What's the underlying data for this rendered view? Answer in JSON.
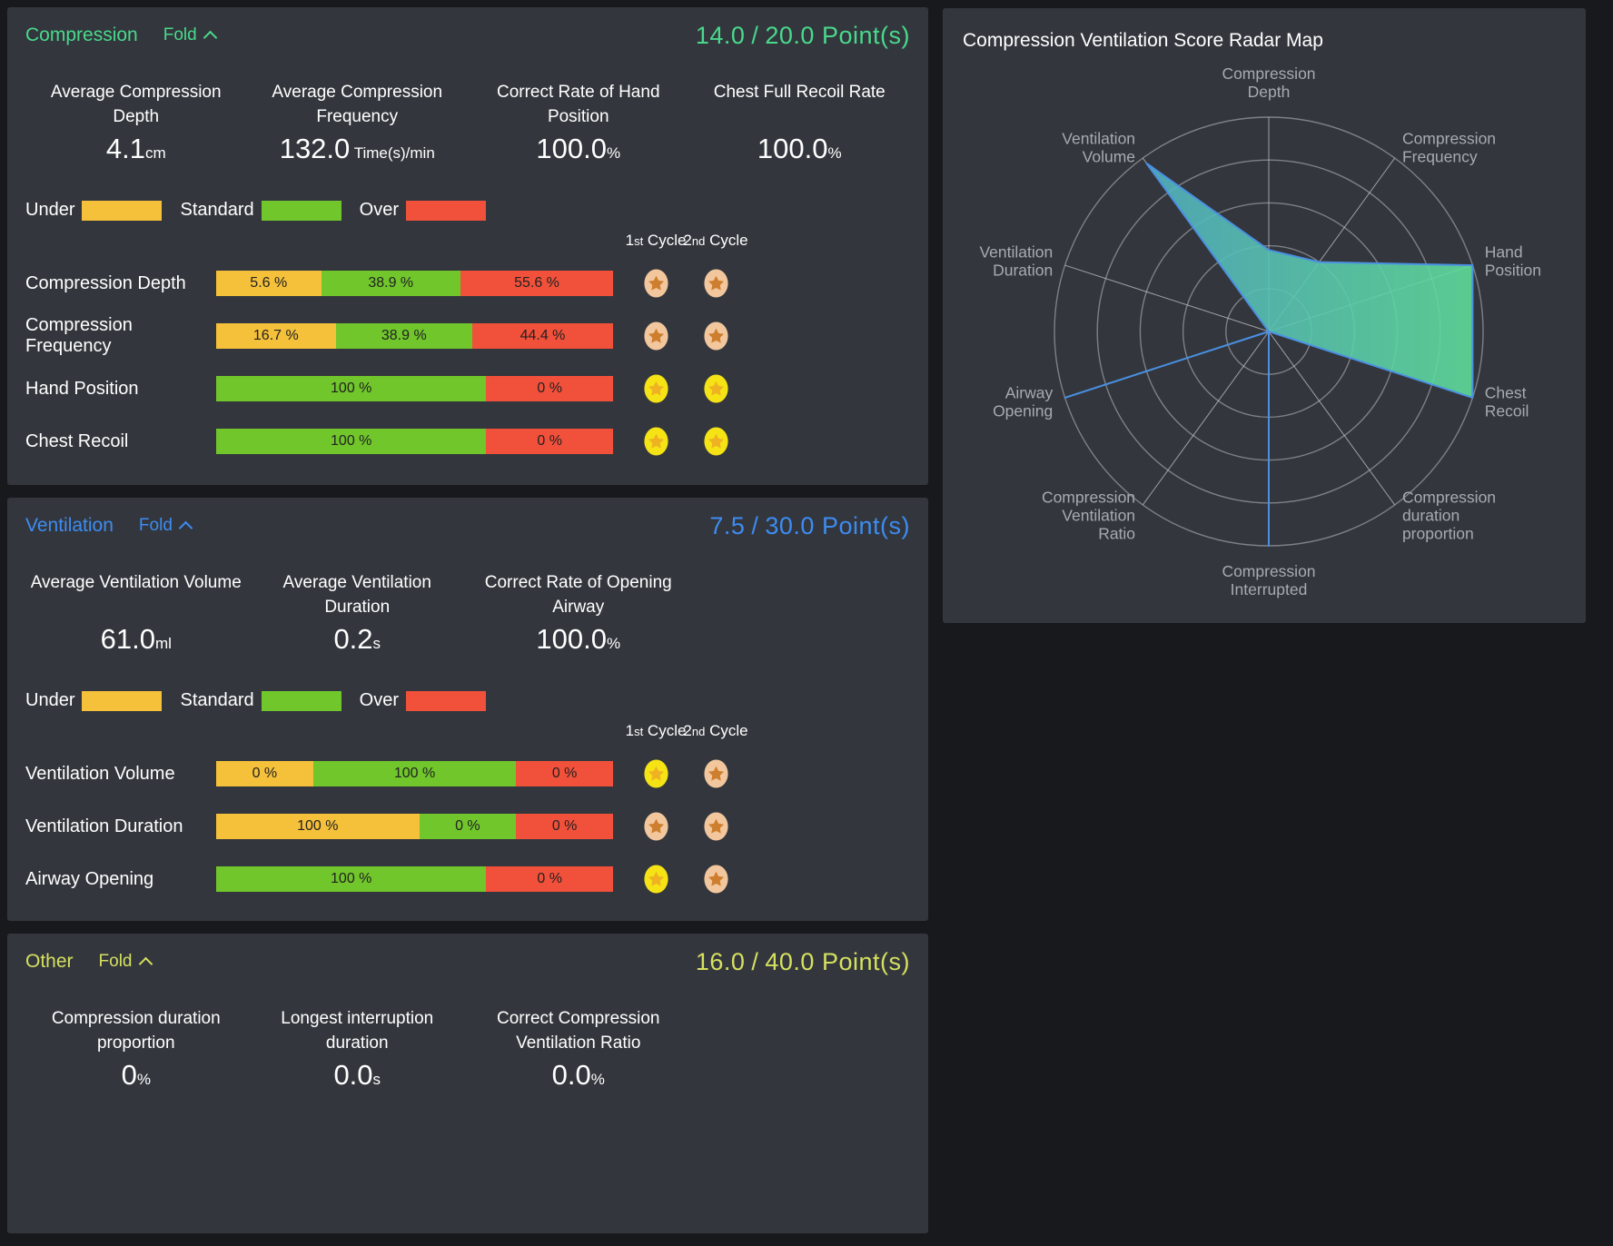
{
  "page": {
    "background": "#17191d",
    "panel_background": "#33373d"
  },
  "cycle_headers": [
    {
      "num": "1",
      "suffix": "st",
      "word": "Cycle"
    },
    {
      "num": "2",
      "suffix": "nd",
      "word": "Cycle"
    }
  ],
  "legend": {
    "items": [
      {
        "label": "Under",
        "kind": "under"
      },
      {
        "label": "Standard",
        "kind": "standard"
      },
      {
        "label": "Over",
        "kind": "over"
      }
    ]
  },
  "bar_colors": {
    "under": "#f5c13a",
    "standard": "#70c62b",
    "over": "#f1503a"
  },
  "medal_colors": {
    "gold": {
      "circle": "#f6e315",
      "star": "#eeb222"
    },
    "bronze": {
      "circle": "#f3c79d",
      "star": "#cd7e2e"
    }
  },
  "panels": [
    {
      "id": "compression",
      "title": "Compression",
      "fold_label": "Fold",
      "score": "14.0",
      "sep": "/",
      "max": "20.0",
      "points_label": "Point(s)",
      "accent": "#49d98c",
      "show_legend": true,
      "show_cycles": true,
      "metrics": [
        {
          "lines": [
            "Average Compression",
            "Depth"
          ],
          "value": "4.1",
          "unit": "cm"
        },
        {
          "lines": [
            "Average Compression",
            "Frequency"
          ],
          "value": "132.0",
          "unit": " Time(s)/min"
        },
        {
          "lines": [
            "Correct Rate of Hand",
            "Position"
          ],
          "value": "100.0",
          "unit": "%"
        },
        {
          "lines": [
            "Chest Full Recoil Rate"
          ],
          "value": "100.0",
          "unit": "%"
        }
      ],
      "rows": [
        {
          "label": "Compression Depth",
          "segments": [
            {
              "kind": "under",
              "pct": 5.6,
              "text": "5.6 %"
            },
            {
              "kind": "standard",
              "pct": 38.9,
              "text": "38.9 %"
            },
            {
              "kind": "over",
              "pct": 55.6,
              "text": "55.6 %"
            }
          ],
          "medals": [
            "bronze",
            "bronze"
          ]
        },
        {
          "label": "Compression Frequency",
          "segments": [
            {
              "kind": "under",
              "pct": 16.7,
              "text": "16.7 %"
            },
            {
              "kind": "standard",
              "pct": 38.9,
              "text": "38.9 %"
            },
            {
              "kind": "over",
              "pct": 44.4,
              "text": "44.4 %"
            }
          ],
          "medals": [
            "bronze",
            "bronze"
          ]
        },
        {
          "label": "Hand Position",
          "segments": [
            {
              "kind": "standard",
              "pct": 100,
              "text": "100 %"
            },
            {
              "kind": "over",
              "pct": 0,
              "text": "0 %"
            }
          ],
          "medals": [
            "gold",
            "gold"
          ]
        },
        {
          "label": "Chest Recoil",
          "segments": [
            {
              "kind": "standard",
              "pct": 100,
              "text": "100 %"
            },
            {
              "kind": "over",
              "pct": 0,
              "text": "0 %"
            }
          ],
          "medals": [
            "gold",
            "gold"
          ]
        }
      ]
    },
    {
      "id": "ventilation",
      "title": "Ventilation",
      "fold_label": "Fold",
      "score": "7.5",
      "sep": "/",
      "max": "30.0",
      "points_label": "Point(s)",
      "accent": "#3d8cf2",
      "show_legend": true,
      "show_cycles": true,
      "metrics": [
        {
          "lines": [
            "Average Ventilation Volume"
          ],
          "value": "61.0",
          "unit": "ml"
        },
        {
          "lines": [
            "Average Ventilation",
            "Duration"
          ],
          "value": "0.2",
          "unit": "s"
        },
        {
          "lines": [
            "Correct Rate of Opening",
            "Airway"
          ],
          "value": "100.0",
          "unit": "%"
        }
      ],
      "rows": [
        {
          "label": "Ventilation Volume",
          "segments": [
            {
              "kind": "under",
              "pct": 0,
              "text": "0 %"
            },
            {
              "kind": "standard",
              "pct": 100,
              "text": "100 %"
            },
            {
              "kind": "over",
              "pct": 0,
              "text": "0 %"
            }
          ],
          "medals": [
            "gold",
            "bronze"
          ]
        },
        {
          "label": "Ventilation Duration",
          "segments": [
            {
              "kind": "under",
              "pct": 100,
              "text": "100 %"
            },
            {
              "kind": "standard",
              "pct": 0,
              "text": "0 %"
            },
            {
              "kind": "over",
              "pct": 0,
              "text": "0 %"
            }
          ],
          "medals": [
            "bronze",
            "bronze"
          ]
        },
        {
          "label": "Airway Opening",
          "segments": [
            {
              "kind": "standard",
              "pct": 100,
              "text": "100 %"
            },
            {
              "kind": "over",
              "pct": 0,
              "text": "0 %"
            }
          ],
          "medals": [
            "gold",
            "bronze"
          ]
        }
      ]
    },
    {
      "id": "other",
      "title": "Other",
      "fold_label": "Fold",
      "score": "16.0",
      "sep": "/",
      "max": "40.0",
      "points_label": "Point(s)",
      "accent": "#d6e05f",
      "show_legend": false,
      "show_cycles": false,
      "metrics": [
        {
          "lines": [
            "Compression duration",
            "proportion"
          ],
          "value": "0",
          "unit": "%"
        },
        {
          "lines": [
            "Longest interruption",
            "duration"
          ],
          "value": "0.0",
          "unit": "s"
        },
        {
          "lines": [
            "Correct Compression",
            "Ventilation Ratio"
          ],
          "value": "0.0",
          "unit": "%"
        }
      ],
      "rows": []
    }
  ],
  "radar": {
    "title": "Compression Ventilation Score Radar Map",
    "rings": 5,
    "grid_color": "#85898f",
    "spoke_color": "#ccd0d4",
    "stroke_color": "#4a90e2",
    "label_color": "#a6abb0",
    "fill_gradient": [
      "#4fa9cd",
      "#60df9c"
    ],
    "axes": [
      {
        "lines": [
          "Compression",
          "Depth"
        ],
        "value": 0.38
      },
      {
        "lines": [
          "Compression",
          "Frequency"
        ],
        "value": 0.4
      },
      {
        "lines": [
          "Hand",
          "Position"
        ],
        "value": 1.0
      },
      {
        "lines": [
          "Chest",
          "Recoil"
        ],
        "value": 1.0
      },
      {
        "lines": [
          "Compression",
          "duration",
          "proportion"
        ],
        "value": 0.0
      },
      {
        "lines": [
          "Compression",
          "Interrupted"
        ],
        "value": 1.0
      },
      {
        "lines": [
          "Compression",
          "Ventilation",
          "Ratio"
        ],
        "value": 0.0
      },
      {
        "lines": [
          "Airway",
          "Opening"
        ],
        "value": 1.0
      },
      {
        "lines": [
          "Ventilation",
          "Duration"
        ],
        "value": 0.0
      },
      {
        "lines": [
          "Ventilation",
          "Volume"
        ],
        "value": 0.97
      }
    ]
  },
  "chart_data": {
    "type": "radar",
    "title": "Compression Ventilation Score Radar Map",
    "categories": [
      "Compression Depth",
      "Compression Frequency",
      "Hand Position",
      "Chest Recoil",
      "Compression duration proportion",
      "Compression Interrupted",
      "Compression Ventilation Ratio",
      "Airway Opening",
      "Ventilation Duration",
      "Ventilation Volume"
    ],
    "values": [
      0.38,
      0.4,
      1.0,
      1.0,
      0.0,
      1.0,
      0.0,
      1.0,
      0.0,
      0.97
    ],
    "rmax": 1.0,
    "rings": 5,
    "legend_position": "none",
    "grid": true
  }
}
